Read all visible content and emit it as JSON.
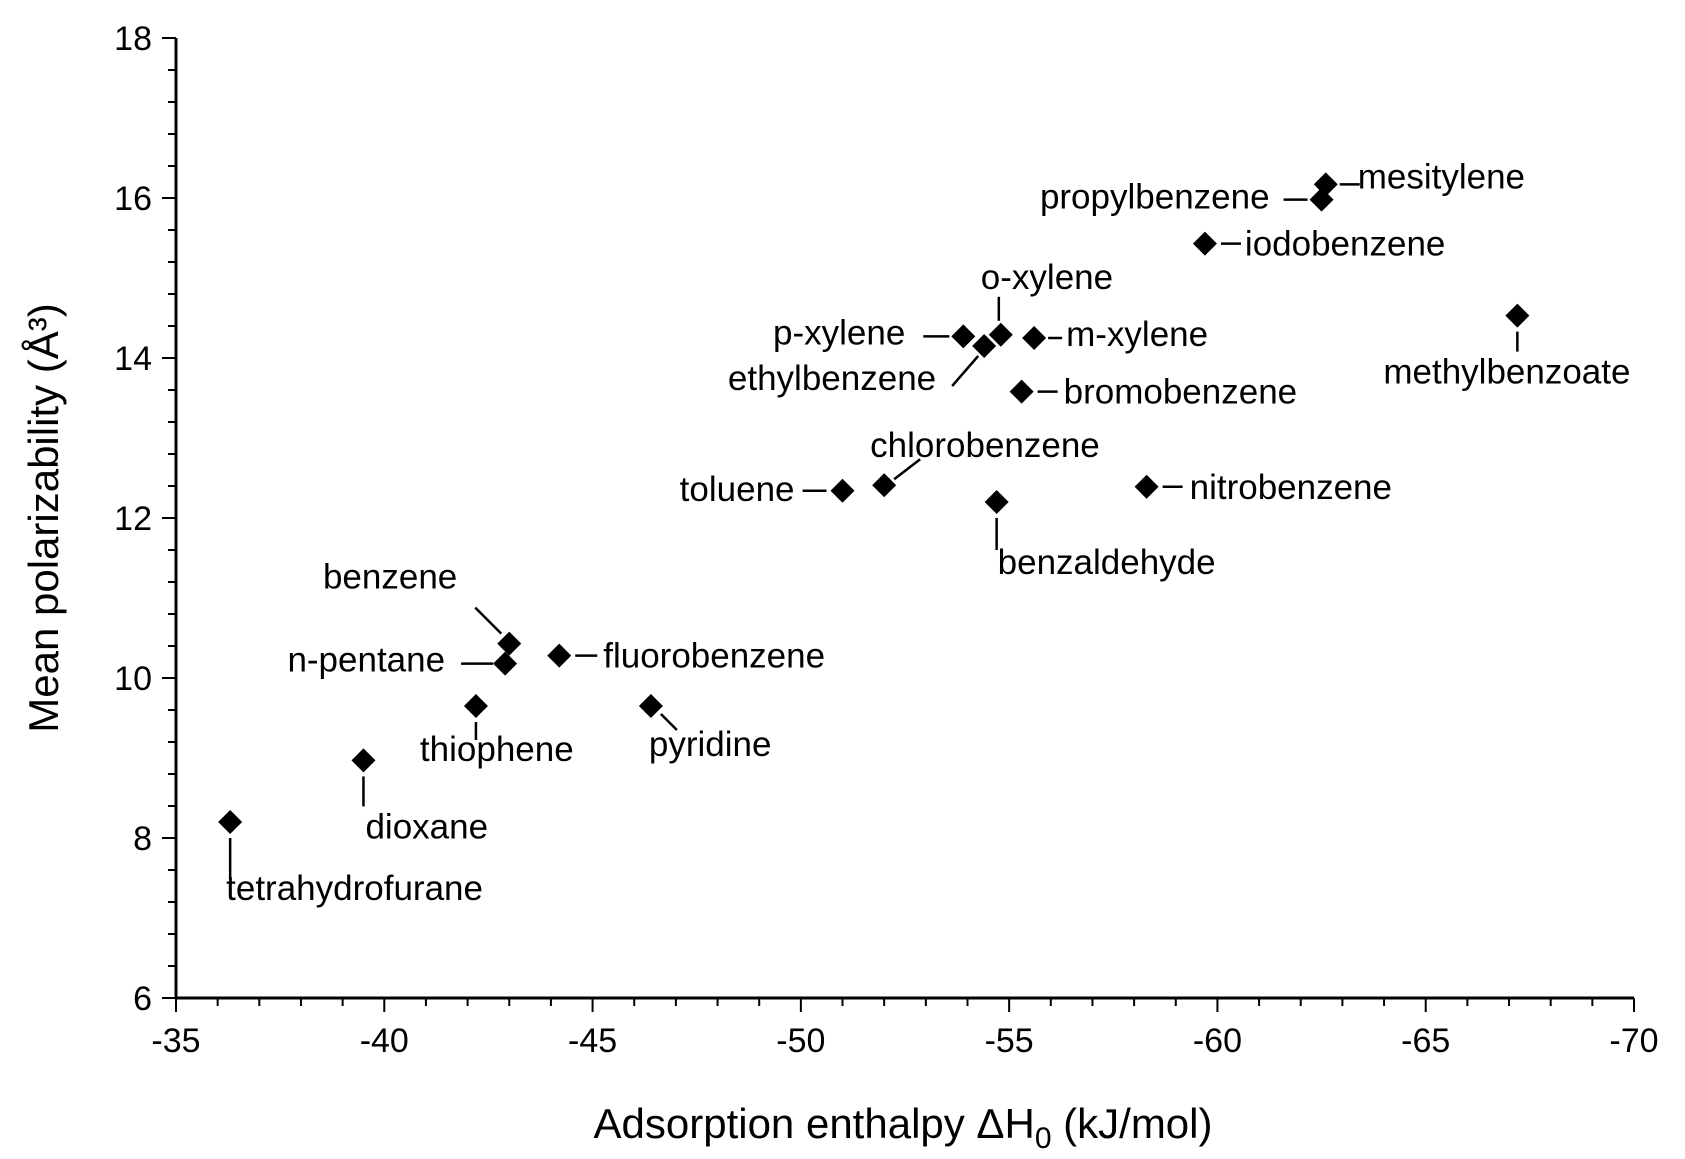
{
  "chart_data": {
    "type": "scatter",
    "xlabel_parts": {
      "main": "Adsorption enthalpy ΔH",
      "subscript": "0",
      "unit": " (kJ/mol)"
    },
    "ylabel": "Mean polarizability (Å³)",
    "xlim": [
      -35,
      -70
    ],
    "ylim": [
      6,
      18
    ],
    "x_ticks": [
      "-35",
      "-40",
      "-45",
      "-50",
      "-55",
      "-60",
      "-65",
      "-70"
    ],
    "y_ticks": [
      "6",
      "8",
      "10",
      "12",
      "14",
      "16",
      "18"
    ],
    "grid": false,
    "legend": "none",
    "marker": "diamond",
    "marker_color": "#000000",
    "points": [
      {
        "label": "tetrahydrofurane",
        "x": -36.3,
        "y": 8.2
      },
      {
        "label": "dioxane",
        "x": -39.5,
        "y": 8.97
      },
      {
        "label": "thiophene",
        "x": -42.2,
        "y": 9.65
      },
      {
        "label": "n-pentane",
        "x": -42.9,
        "y": 10.18
      },
      {
        "label": "benzene",
        "x": -43.0,
        "y": 10.43
      },
      {
        "label": "fluorobenzene",
        "x": -44.2,
        "y": 10.28
      },
      {
        "label": "pyridine",
        "x": -46.4,
        "y": 9.65
      },
      {
        "label": "toluene",
        "x": -51.0,
        "y": 12.34
      },
      {
        "label": "chlorobenzene",
        "x": -52.0,
        "y": 12.41
      },
      {
        "label": "benzaldehyde",
        "x": -54.7,
        "y": 12.2
      },
      {
        "label": "nitrobenzene",
        "x": -58.3,
        "y": 12.39
      },
      {
        "label": "p-xylene",
        "x": -53.9,
        "y": 14.27
      },
      {
        "label": "ethylbenzene",
        "x": -54.4,
        "y": 14.15
      },
      {
        "label": "o-xylene",
        "x": -54.8,
        "y": 14.29
      },
      {
        "label": "m-xylene",
        "x": -55.6,
        "y": 14.25
      },
      {
        "label": "bromobenzene",
        "x": -55.3,
        "y": 13.58
      },
      {
        "label": "iodobenzene",
        "x": -59.7,
        "y": 15.43
      },
      {
        "label": "propylbenzene",
        "x": -62.5,
        "y": 15.98
      },
      {
        "label": "mesitylene",
        "x": -62.6,
        "y": 16.17
      },
      {
        "label": "methylbenzoate",
        "x": -67.2,
        "y": 14.53
      }
    ]
  }
}
